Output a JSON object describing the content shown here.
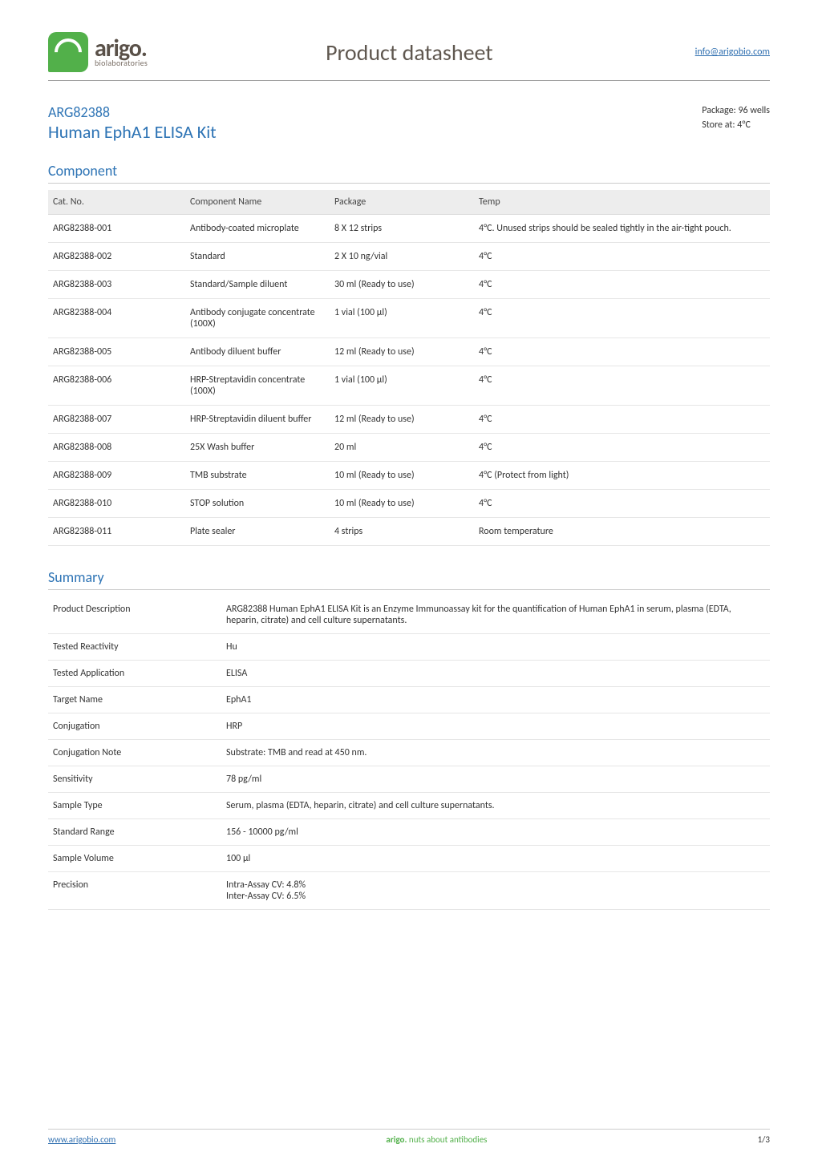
{
  "header": {
    "logo_name": "arigo.",
    "logo_sub": "biolaboratories",
    "title": "Product datasheet",
    "email_link": "info@arigobio.com"
  },
  "product": {
    "code": "ARG82388",
    "name": "Human EphA1 ELISA Kit",
    "package_label": "Package: 96 wells",
    "store_label": "Store at: 4°C"
  },
  "sections": {
    "component": "Component",
    "summary": "Summary"
  },
  "component_table": {
    "columns": [
      "Cat. No.",
      "Component Name",
      "Package",
      "Temp"
    ],
    "rows": [
      [
        "ARG82388-001",
        "Antibody-coated microplate",
        "8 X 12 strips",
        "4°C. Unused strips should be sealed tightly in the air-tight pouch."
      ],
      [
        "ARG82388-002",
        "Standard",
        "2 X 10 ng/vial",
        "4°C"
      ],
      [
        "ARG82388-003",
        "Standard/Sample diluent",
        "30 ml (Ready to use)",
        "4°C"
      ],
      [
        "ARG82388-004",
        "Antibody conjugate concentrate (100X)",
        "1 vial (100 µl)",
        "4°C"
      ],
      [
        "ARG82388-005",
        "Antibody diluent buffer",
        "12 ml (Ready to use)",
        "4°C"
      ],
      [
        "ARG82388-006",
        "HRP-Streptavidin concentrate (100X)",
        "1 vial (100 µl)",
        "4°C"
      ],
      [
        "ARG82388-007",
        "HRP-Streptavidin diluent buffer",
        "12 ml (Ready to use)",
        "4°C"
      ],
      [
        "ARG82388-008",
        "25X Wash buffer",
        "20 ml",
        "4°C"
      ],
      [
        "ARG82388-009",
        "TMB substrate",
        "10 ml (Ready to use)",
        "4°C (Protect from light)"
      ],
      [
        "ARG82388-010",
        "STOP solution",
        "10 ml (Ready to use)",
        "4°C"
      ],
      [
        "ARG82388-011",
        "Plate sealer",
        "4 strips",
        "Room temperature"
      ]
    ],
    "header_bg": "#ededed",
    "border_color": "#e6e6e6",
    "label_fontsize": 12
  },
  "summary_table": {
    "rows": [
      [
        "Product Description",
        "ARG82388 Human EphA1 ELISA Kit is an Enzyme Immunoassay kit for the quantification of Human EphA1 in serum, plasma (EDTA, heparin, citrate) and cell culture supernatants."
      ],
      [
        "Tested Reactivity",
        "Hu"
      ],
      [
        "Tested Application",
        "ELISA"
      ],
      [
        "Target Name",
        "EphA1"
      ],
      [
        "Conjugation",
        "HRP"
      ],
      [
        "Conjugation Note",
        "Substrate: TMB and read at 450 nm."
      ],
      [
        "Sensitivity",
        "78 pg/ml"
      ],
      [
        "Sample Type",
        "Serum, plasma (EDTA, heparin, citrate) and cell culture supernatants."
      ],
      [
        "Standard Range",
        "156 - 10000 pg/ml"
      ],
      [
        "Sample Volume",
        "100 µl"
      ],
      [
        "Precision",
        "Intra-Assay CV: 4.8%\nInter-Assay CV: 6.5%"
      ]
    ],
    "border_color": "#e6e6e6",
    "label_fontsize": 12
  },
  "footer": {
    "site": "www.arigobio.com",
    "tagline_brand": "arigo.",
    "tagline_rest": " nuts about antibodies",
    "page": "1/3"
  },
  "colors": {
    "accent_blue": "#2e74b5",
    "accent_green": "#52b04a",
    "link_blue": "#2f6fb0",
    "text": "#333333",
    "rule": "#cccccc"
  }
}
